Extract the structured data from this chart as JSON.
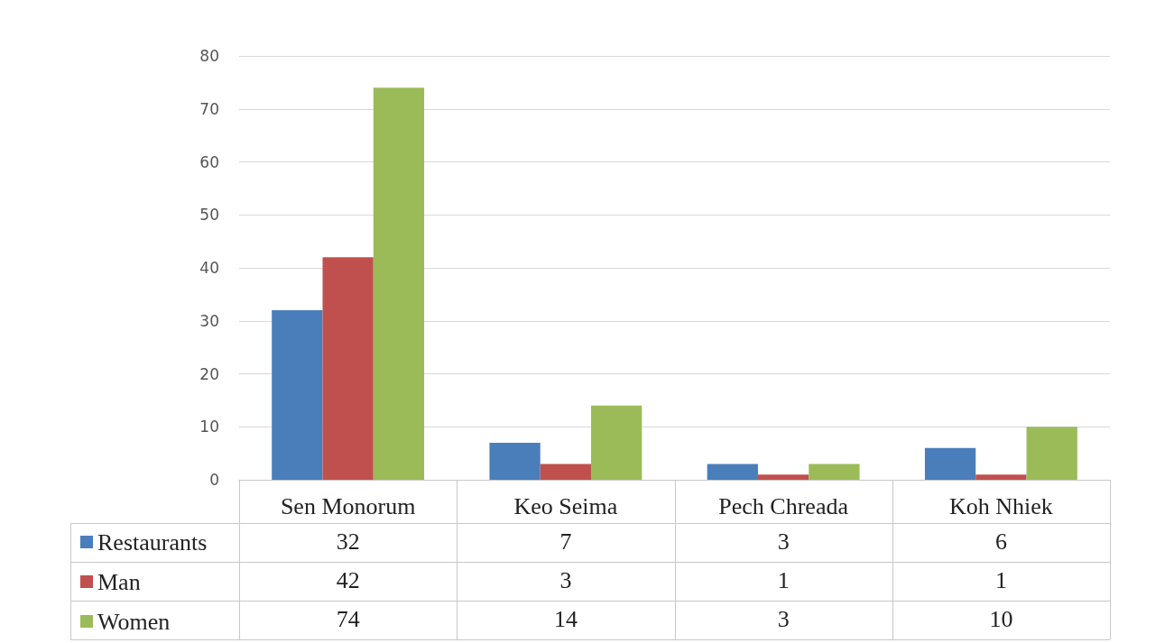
{
  "chart_data": {
    "type": "bar",
    "categories": [
      "Sen Monorum",
      "Keo Seima",
      "Pech Chreada",
      "Koh Nhiek"
    ],
    "series": [
      {
        "name": "Restaurants",
        "color": "#4a7ebb",
        "values": [
          32,
          7,
          3,
          6
        ]
      },
      {
        "name": "Man",
        "color": "#c0504d",
        "values": [
          42,
          3,
          1,
          1
        ]
      },
      {
        "name": "Women",
        "color": "#9bbb59",
        "values": [
          74,
          14,
          3,
          10
        ]
      }
    ],
    "ylim": [
      0,
      80
    ],
    "yticks": [
      0,
      10,
      20,
      30,
      40,
      50,
      60,
      70,
      80
    ],
    "grid": "y",
    "legend": "bottom",
    "data_labels": true
  }
}
